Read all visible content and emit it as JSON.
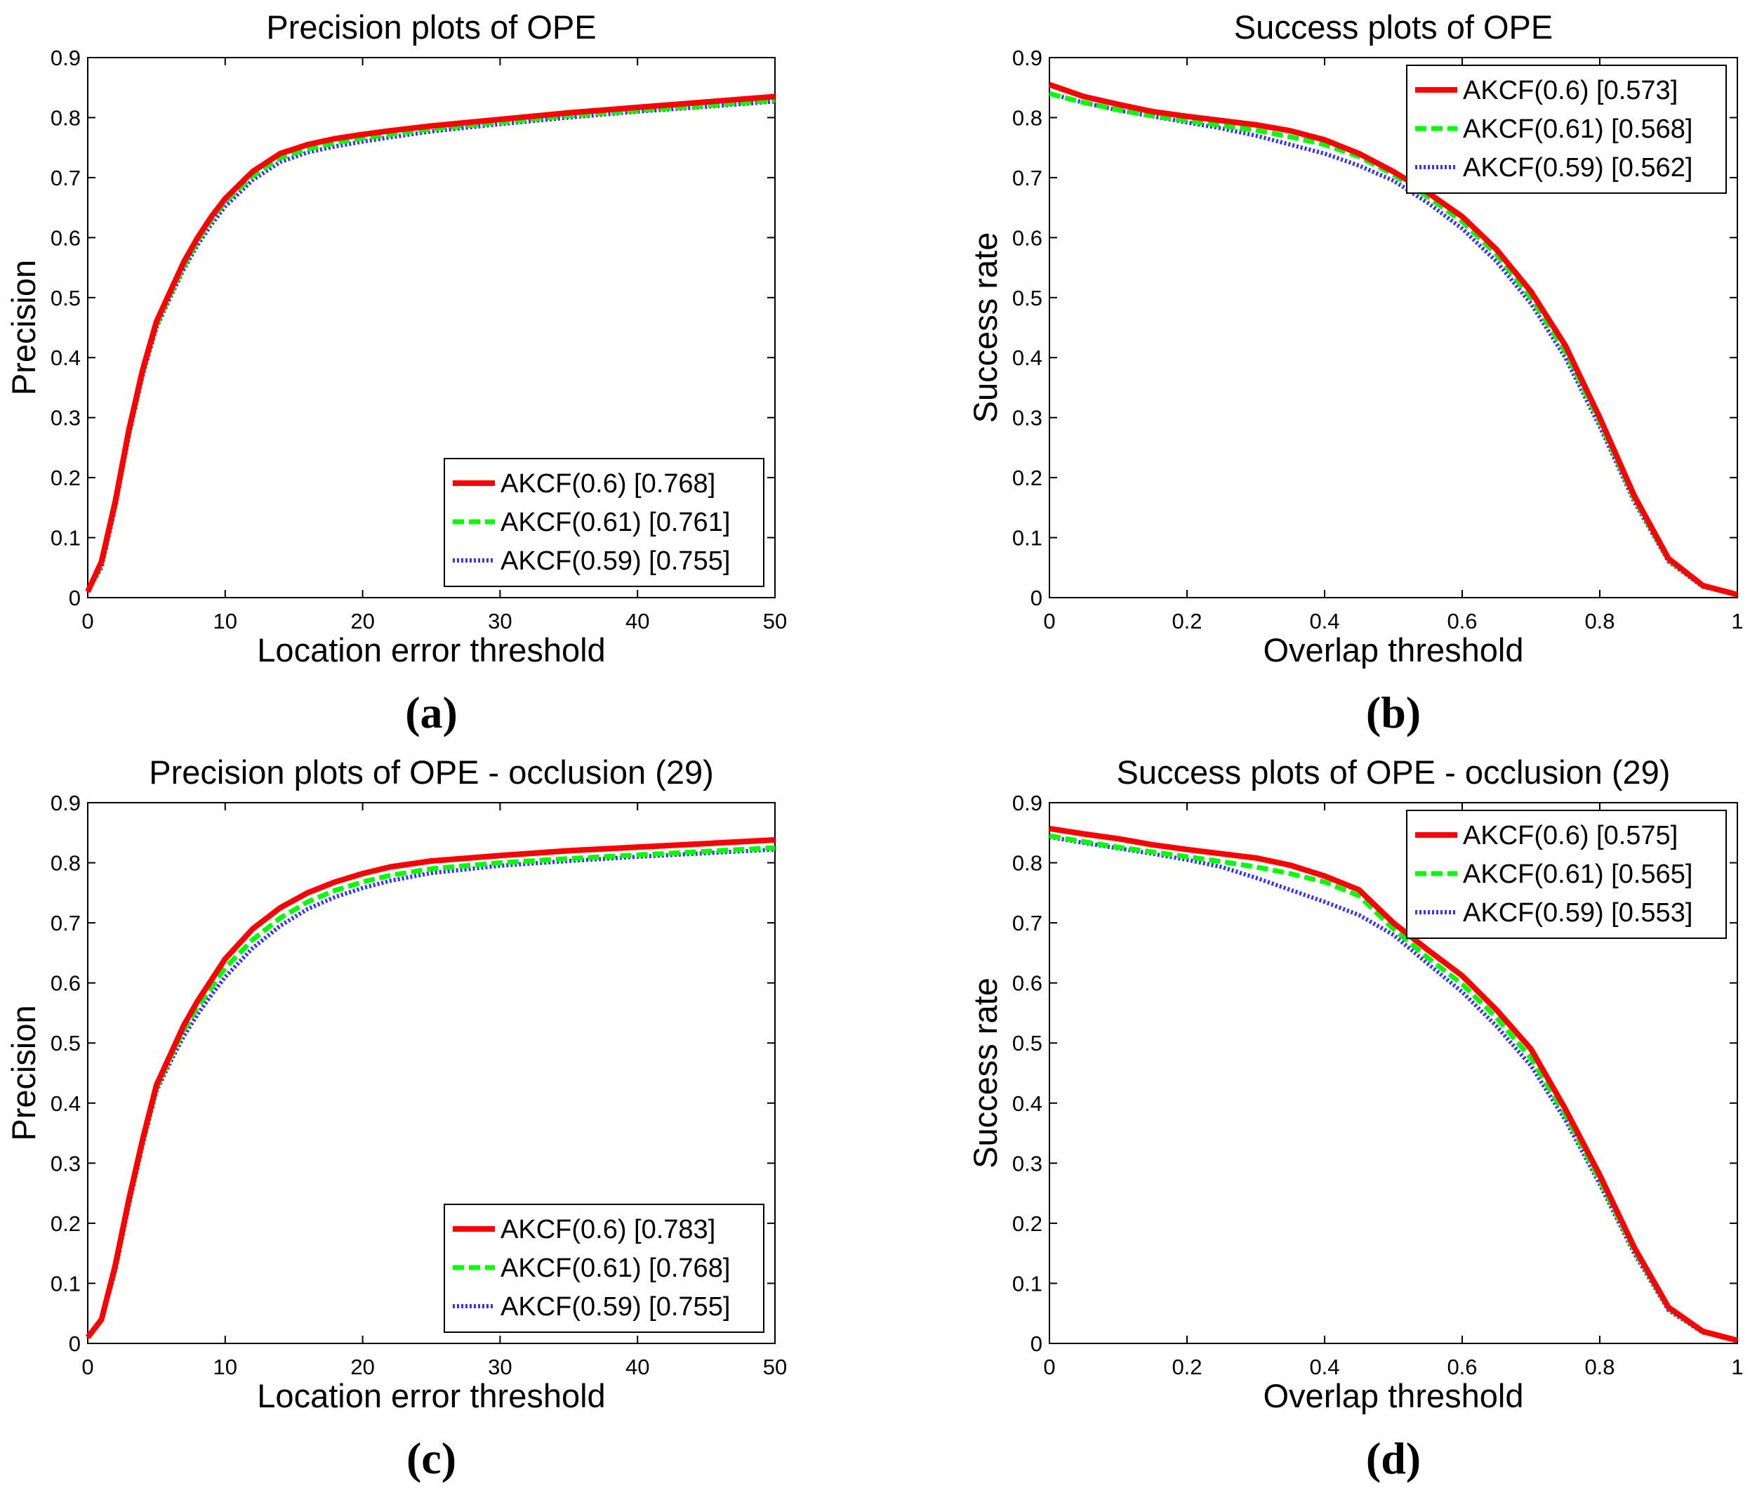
{
  "figure": {
    "colors": {
      "red": "#ff0000",
      "green": "#00ff00",
      "blue": "#3333ff",
      "axis": "#000000",
      "background": "#ffffff"
    }
  },
  "chart_data": [
    {
      "id": "a",
      "panel_label": "(a)",
      "type": "line",
      "title": "Precision plots of OPE",
      "xlabel": "Location error threshold",
      "ylabel": "Precision",
      "xlim": [
        0,
        50
      ],
      "ylim": [
        0,
        0.9
      ],
      "xticks": [
        0,
        10,
        20,
        30,
        40,
        50
      ],
      "xtick_labels": [
        "0",
        "10",
        "20",
        "30",
        "40",
        "50"
      ],
      "yticks": [
        0,
        0.1,
        0.2,
        0.3,
        0.4,
        0.5,
        0.6,
        0.7,
        0.8,
        0.9
      ],
      "ytick_labels": [
        "0",
        "0.1",
        "0.2",
        "0.3",
        "0.4",
        "0.5",
        "0.6",
        "0.7",
        "0.8",
        "0.9"
      ],
      "grid": false,
      "legend_position": "bottom-right",
      "series": [
        {
          "name": "AKCF(0.6) [0.768]",
          "color": "#ff0000",
          "style": "solid",
          "x": [
            0,
            1,
            2,
            3,
            4,
            5,
            6,
            7,
            8,
            9,
            10,
            12,
            14,
            16,
            18,
            20,
            22,
            25,
            30,
            35,
            40,
            45,
            50
          ],
          "y": [
            0.01,
            0.06,
            0.16,
            0.28,
            0.38,
            0.46,
            0.51,
            0.56,
            0.6,
            0.635,
            0.665,
            0.71,
            0.74,
            0.755,
            0.765,
            0.772,
            0.778,
            0.786,
            0.797,
            0.808,
            0.817,
            0.826,
            0.835
          ]
        },
        {
          "name": "AKCF(0.61) [0.761]",
          "color": "#00ff00",
          "style": "dashed",
          "x": [
            0,
            1,
            2,
            3,
            4,
            5,
            6,
            7,
            8,
            9,
            10,
            12,
            14,
            16,
            18,
            20,
            22,
            25,
            30,
            35,
            40,
            45,
            50
          ],
          "y": [
            0.01,
            0.055,
            0.155,
            0.275,
            0.375,
            0.455,
            0.505,
            0.553,
            0.595,
            0.63,
            0.66,
            0.703,
            0.733,
            0.748,
            0.758,
            0.766,
            0.772,
            0.781,
            0.792,
            0.803,
            0.812,
            0.82,
            0.829
          ]
        },
        {
          "name": "AKCF(0.59) [0.755]",
          "color": "#3333ff",
          "style": "dotted",
          "x": [
            0,
            1,
            2,
            3,
            4,
            5,
            6,
            7,
            8,
            9,
            10,
            12,
            14,
            16,
            18,
            20,
            22,
            25,
            30,
            35,
            40,
            45,
            50
          ],
          "y": [
            0.01,
            0.05,
            0.15,
            0.27,
            0.37,
            0.45,
            0.5,
            0.548,
            0.588,
            0.622,
            0.652,
            0.696,
            0.726,
            0.742,
            0.752,
            0.76,
            0.767,
            0.777,
            0.789,
            0.8,
            0.81,
            0.818,
            0.827
          ]
        }
      ]
    },
    {
      "id": "b",
      "panel_label": "(b)",
      "type": "line",
      "title": "Success plots of OPE",
      "xlabel": "Overlap threshold",
      "ylabel": "Success rate",
      "xlim": [
        0,
        1
      ],
      "ylim": [
        0,
        0.9
      ],
      "xticks": [
        0,
        0.2,
        0.4,
        0.6,
        0.8,
        1
      ],
      "xtick_labels": [
        "0",
        "0.2",
        "0.4",
        "0.6",
        "0.8",
        "1"
      ],
      "yticks": [
        0,
        0.1,
        0.2,
        0.3,
        0.4,
        0.5,
        0.6,
        0.7,
        0.8,
        0.9
      ],
      "ytick_labels": [
        "0",
        "0.1",
        "0.2",
        "0.3",
        "0.4",
        "0.5",
        "0.6",
        "0.7",
        "0.8",
        "0.9"
      ],
      "grid": false,
      "legend_position": "top-right",
      "series": [
        {
          "name": "AKCF(0.6) [0.573]",
          "color": "#ff0000",
          "style": "solid",
          "x": [
            0,
            0.05,
            0.1,
            0.15,
            0.2,
            0.25,
            0.3,
            0.35,
            0.4,
            0.45,
            0.5,
            0.55,
            0.6,
            0.65,
            0.7,
            0.75,
            0.8,
            0.85,
            0.9,
            0.95,
            1
          ],
          "y": [
            0.855,
            0.835,
            0.822,
            0.81,
            0.802,
            0.795,
            0.788,
            0.778,
            0.763,
            0.74,
            0.71,
            0.675,
            0.635,
            0.58,
            0.51,
            0.42,
            0.3,
            0.17,
            0.065,
            0.02,
            0.005
          ]
        },
        {
          "name": "AKCF(0.61) [0.568]",
          "color": "#00ff00",
          "style": "dashed",
          "x": [
            0,
            0.05,
            0.1,
            0.15,
            0.2,
            0.25,
            0.3,
            0.35,
            0.4,
            0.45,
            0.5,
            0.55,
            0.6,
            0.65,
            0.7,
            0.75,
            0.8,
            0.85,
            0.9,
            0.95,
            1
          ],
          "y": [
            0.84,
            0.825,
            0.813,
            0.803,
            0.795,
            0.787,
            0.779,
            0.768,
            0.755,
            0.735,
            0.705,
            0.668,
            0.627,
            0.572,
            0.5,
            0.41,
            0.293,
            0.165,
            0.062,
            0.02,
            0.005
          ]
        },
        {
          "name": "AKCF(0.59) [0.562]",
          "color": "#3333ff",
          "style": "dotted",
          "x": [
            0,
            0.05,
            0.1,
            0.15,
            0.2,
            0.25,
            0.3,
            0.35,
            0.4,
            0.45,
            0.5,
            0.55,
            0.6,
            0.65,
            0.7,
            0.75,
            0.8,
            0.85,
            0.9,
            0.95,
            1
          ],
          "y": [
            0.84,
            0.825,
            0.812,
            0.802,
            0.792,
            0.782,
            0.77,
            0.755,
            0.74,
            0.72,
            0.695,
            0.658,
            0.615,
            0.56,
            0.49,
            0.4,
            0.285,
            0.16,
            0.06,
            0.018,
            0.005
          ]
        }
      ]
    },
    {
      "id": "c",
      "panel_label": "(c)",
      "type": "line",
      "title": "Precision plots of OPE - occlusion (29)",
      "xlabel": "Location error threshold",
      "ylabel": "Precision",
      "xlim": [
        0,
        50
      ],
      "ylim": [
        0,
        0.9
      ],
      "xticks": [
        0,
        10,
        20,
        30,
        40,
        50
      ],
      "xtick_labels": [
        "0",
        "10",
        "20",
        "30",
        "40",
        "50"
      ],
      "yticks": [
        0,
        0.1,
        0.2,
        0.3,
        0.4,
        0.5,
        0.6,
        0.7,
        0.8,
        0.9
      ],
      "ytick_labels": [
        "0",
        "0.1",
        "0.2",
        "0.3",
        "0.4",
        "0.5",
        "0.6",
        "0.7",
        "0.8",
        "0.9"
      ],
      "grid": false,
      "legend_position": "bottom-right",
      "series": [
        {
          "name": "AKCF(0.6) [0.783]",
          "color": "#ff0000",
          "style": "solid",
          "x": [
            0,
            1,
            2,
            3,
            4,
            5,
            6,
            7,
            8,
            9,
            10,
            12,
            14,
            16,
            18,
            20,
            22,
            25,
            30,
            35,
            40,
            45,
            50
          ],
          "y": [
            0.01,
            0.04,
            0.13,
            0.24,
            0.34,
            0.43,
            0.48,
            0.53,
            0.57,
            0.605,
            0.64,
            0.69,
            0.725,
            0.75,
            0.768,
            0.782,
            0.793,
            0.803,
            0.812,
            0.82,
            0.826,
            0.832,
            0.838
          ]
        },
        {
          "name": "AKCF(0.61) [0.768]",
          "color": "#00ff00",
          "style": "dashed",
          "x": [
            0,
            1,
            2,
            3,
            4,
            5,
            6,
            7,
            8,
            9,
            10,
            12,
            14,
            16,
            18,
            20,
            22,
            25,
            30,
            35,
            40,
            45,
            50
          ],
          "y": [
            0.01,
            0.04,
            0.125,
            0.235,
            0.335,
            0.425,
            0.475,
            0.522,
            0.56,
            0.593,
            0.625,
            0.672,
            0.708,
            0.735,
            0.754,
            0.768,
            0.779,
            0.79,
            0.8,
            0.807,
            0.813,
            0.819,
            0.825
          ]
        },
        {
          "name": "AKCF(0.59) [0.755]",
          "color": "#3333ff",
          "style": "dotted",
          "x": [
            0,
            1,
            2,
            3,
            4,
            5,
            6,
            7,
            8,
            9,
            10,
            12,
            14,
            16,
            18,
            20,
            22,
            25,
            30,
            35,
            40,
            45,
            50
          ],
          "y": [
            0.01,
            0.038,
            0.12,
            0.23,
            0.33,
            0.42,
            0.468,
            0.512,
            0.548,
            0.58,
            0.61,
            0.658,
            0.695,
            0.723,
            0.743,
            0.758,
            0.77,
            0.783,
            0.795,
            0.803,
            0.81,
            0.816,
            0.822
          ]
        }
      ]
    },
    {
      "id": "d",
      "panel_label": "(d)",
      "type": "line",
      "title": "Success plots of OPE - occlusion (29)",
      "xlabel": "Overlap threshold",
      "ylabel": "Success rate",
      "xlim": [
        0,
        1
      ],
      "ylim": [
        0,
        0.9
      ],
      "xticks": [
        0,
        0.2,
        0.4,
        0.6,
        0.8,
        1
      ],
      "xtick_labels": [
        "0",
        "0.2",
        "0.4",
        "0.6",
        "0.8",
        "1"
      ],
      "yticks": [
        0,
        0.1,
        0.2,
        0.3,
        0.4,
        0.5,
        0.6,
        0.7,
        0.8,
        0.9
      ],
      "ytick_labels": [
        "0",
        "0.1",
        "0.2",
        "0.3",
        "0.4",
        "0.5",
        "0.6",
        "0.7",
        "0.8",
        "0.9"
      ],
      "grid": false,
      "legend_position": "top-right",
      "series": [
        {
          "name": "AKCF(0.6) [0.575]",
          "color": "#ff0000",
          "style": "solid",
          "x": [
            0,
            0.05,
            0.1,
            0.15,
            0.2,
            0.25,
            0.3,
            0.35,
            0.4,
            0.45,
            0.5,
            0.55,
            0.6,
            0.65,
            0.7,
            0.75,
            0.8,
            0.85,
            0.9,
            0.95,
            1
          ],
          "y": [
            0.857,
            0.848,
            0.84,
            0.83,
            0.822,
            0.815,
            0.808,
            0.796,
            0.778,
            0.755,
            0.7,
            0.655,
            0.612,
            0.555,
            0.49,
            0.39,
            0.28,
            0.16,
            0.06,
            0.02,
            0.005
          ]
        },
        {
          "name": "AKCF(0.61) [0.565]",
          "color": "#00ff00",
          "style": "dashed",
          "x": [
            0,
            0.05,
            0.1,
            0.15,
            0.2,
            0.25,
            0.3,
            0.35,
            0.4,
            0.45,
            0.5,
            0.55,
            0.6,
            0.65,
            0.7,
            0.75,
            0.8,
            0.85,
            0.9,
            0.95,
            1
          ],
          "y": [
            0.845,
            0.835,
            0.826,
            0.818,
            0.81,
            0.802,
            0.793,
            0.782,
            0.768,
            0.745,
            0.69,
            0.642,
            0.598,
            0.542,
            0.475,
            0.38,
            0.272,
            0.155,
            0.058,
            0.019,
            0.005
          ]
        },
        {
          "name": "AKCF(0.59) [0.553]",
          "color": "#3333ff",
          "style": "dotted",
          "x": [
            0,
            0.05,
            0.1,
            0.15,
            0.2,
            0.25,
            0.3,
            0.35,
            0.4,
            0.45,
            0.5,
            0.55,
            0.6,
            0.65,
            0.7,
            0.75,
            0.8,
            0.85,
            0.9,
            0.95,
            1
          ],
          "y": [
            0.843,
            0.833,
            0.824,
            0.815,
            0.805,
            0.793,
            0.775,
            0.755,
            0.735,
            0.713,
            0.68,
            0.632,
            0.585,
            0.528,
            0.462,
            0.372,
            0.265,
            0.15,
            0.055,
            0.018,
            0.005
          ]
        }
      ]
    }
  ]
}
